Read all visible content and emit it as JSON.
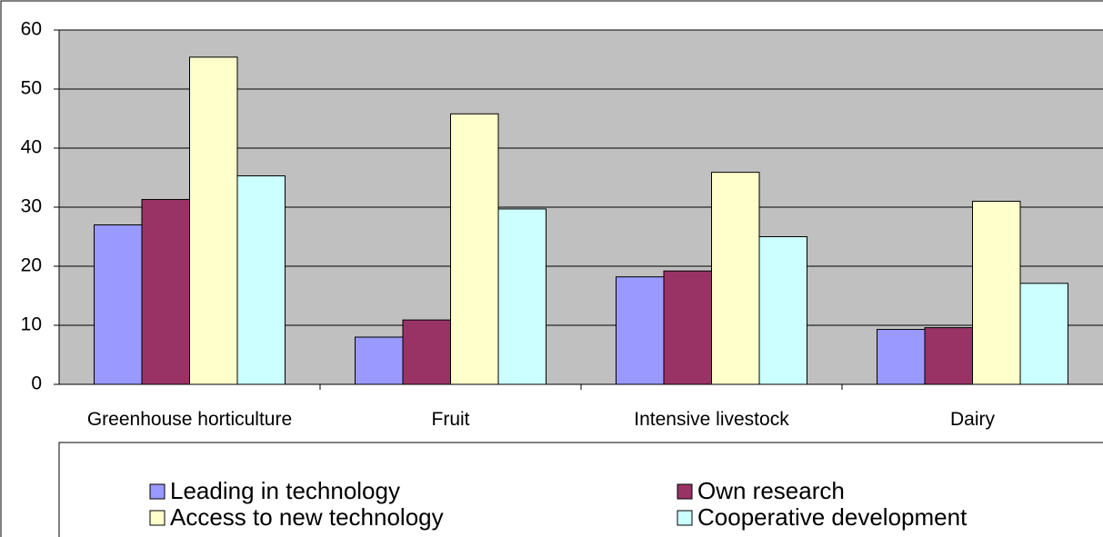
{
  "chart_data": {
    "type": "bar",
    "categories": [
      "Greenhouse horticulture",
      "Fruit",
      "Intensive livestock",
      "Dairy"
    ],
    "series": [
      {
        "name": "Leading in technology",
        "color": "#9999ff",
        "values": [
          27,
          8,
          18.2,
          9.3
        ]
      },
      {
        "name": "Own research",
        "color": "#993366",
        "values": [
          31.3,
          10.9,
          19.2,
          9.6
        ]
      },
      {
        "name": "Access to new technology",
        "color": "#ffffcc",
        "values": [
          55.4,
          45.8,
          35.9,
          31
        ]
      },
      {
        "name": "Cooperative development",
        "color": "#ccffff",
        "values": [
          35.3,
          29.7,
          25,
          17.1
        ]
      }
    ],
    "ylim": [
      0,
      60
    ],
    "yticks": [
      0,
      10,
      20,
      30,
      40,
      50,
      60
    ],
    "grid": true,
    "legend": "bottom"
  }
}
